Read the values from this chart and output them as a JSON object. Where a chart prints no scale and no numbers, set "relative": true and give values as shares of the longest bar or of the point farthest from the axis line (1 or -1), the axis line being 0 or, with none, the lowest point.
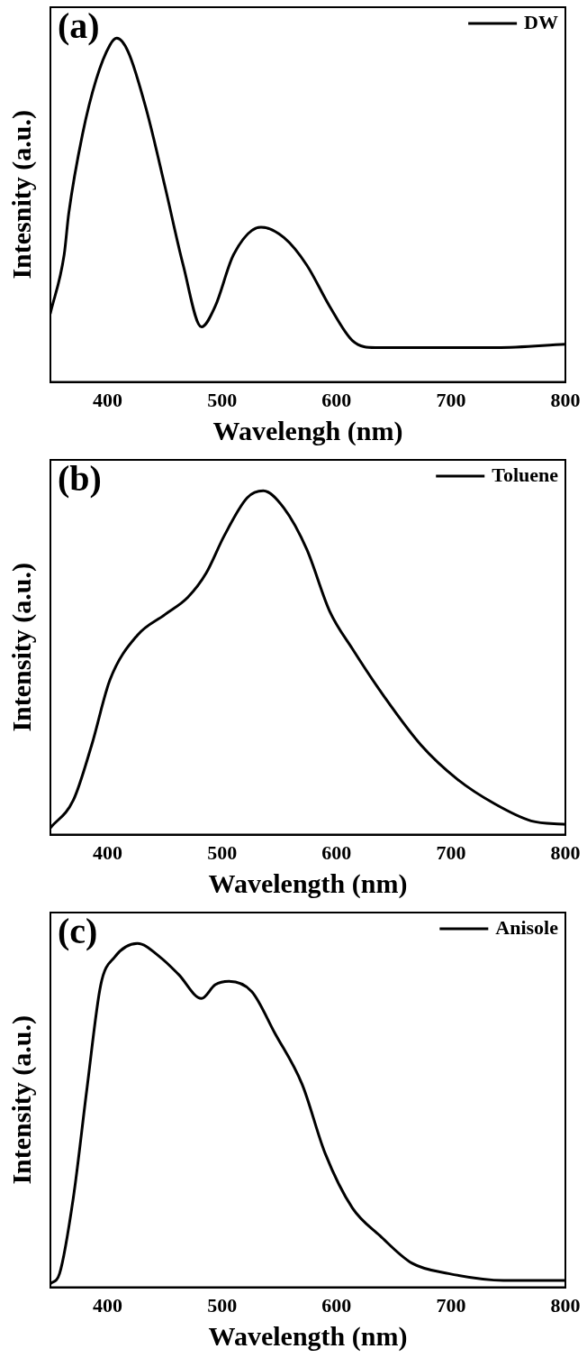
{
  "chart_data": [
    {
      "type": "line",
      "relative": true,
      "xlabel": "Wavelengh (nm)",
      "ylabel": "Intesnity (a.u.)",
      "annotations": [
        "(a)"
      ],
      "xlim": [
        350,
        800
      ],
      "xticks": [
        400,
        500,
        600,
        700,
        800
      ],
      "tick_labels": "x",
      "legend": "top right",
      "grid": false,
      "marker": "none",
      "line_style": "solid",
      "series": [
        {
          "name": "DW",
          "color": "#000000",
          "x": [
            350,
            362,
            366,
            378,
            390,
            402,
            408,
            418,
            434,
            450,
            466,
            482,
            494,
            510,
            534,
            554,
            574,
            594,
            614,
            634,
            680,
            740,
            800
          ],
          "values": [
            0.2,
            0.37,
            0.49,
            0.72,
            0.88,
            0.98,
            1.0,
            0.96,
            0.79,
            0.57,
            0.34,
            0.16,
            0.22,
            0.37,
            0.45,
            0.42,
            0.34,
            0.22,
            0.12,
            0.1,
            0.1,
            0.1,
            0.11
          ]
        }
      ]
    },
    {
      "type": "line",
      "relative": true,
      "xlabel": "Wavelength (nm)",
      "ylabel": "Intensity (a.u.)",
      "annotations": [
        "(b)"
      ],
      "xlim": [
        350,
        800
      ],
      "xticks": [
        400,
        500,
        600,
        700,
        800
      ],
      "tick_labels": "x",
      "legend": "top right",
      "grid": false,
      "marker": "none",
      "line_style": "solid",
      "series": [
        {
          "name": "Toluene",
          "color": "#000000",
          "x": [
            350,
            370,
            386,
            402,
            426,
            450,
            470,
            486,
            502,
            522,
            536,
            554,
            574,
            594,
            614,
            642,
            674,
            706,
            738,
            770,
            800
          ],
          "values": [
            0.02,
            0.1,
            0.26,
            0.45,
            0.58,
            0.64,
            0.69,
            0.76,
            0.87,
            0.98,
            1.0,
            0.95,
            0.83,
            0.65,
            0.54,
            0.4,
            0.26,
            0.16,
            0.09,
            0.04,
            0.03
          ]
        }
      ]
    },
    {
      "type": "line",
      "relative": true,
      "xlabel": "Wavelength (nm)",
      "ylabel": "Intensity (a.u.)",
      "annotations": [
        "(c)"
      ],
      "xlim": [
        350,
        800
      ],
      "xticks": [
        400,
        500,
        600,
        700,
        800
      ],
      "tick_labels": "x",
      "legend": "top right",
      "grid": false,
      "marker": "none",
      "line_style": "solid",
      "series": [
        {
          "name": "Anisole",
          "color": "#000000",
          "x": [
            350,
            358,
            370,
            382,
            394,
            406,
            426,
            446,
            462,
            482,
            494,
            506,
            526,
            546,
            570,
            590,
            614,
            638,
            666,
            698,
            746,
            800
          ],
          "values": [
            0.01,
            0.04,
            0.26,
            0.58,
            0.88,
            0.96,
            1.0,
            0.96,
            0.91,
            0.84,
            0.88,
            0.89,
            0.86,
            0.74,
            0.59,
            0.39,
            0.23,
            0.15,
            0.07,
            0.04,
            0.02,
            0.02
          ]
        }
      ]
    }
  ]
}
